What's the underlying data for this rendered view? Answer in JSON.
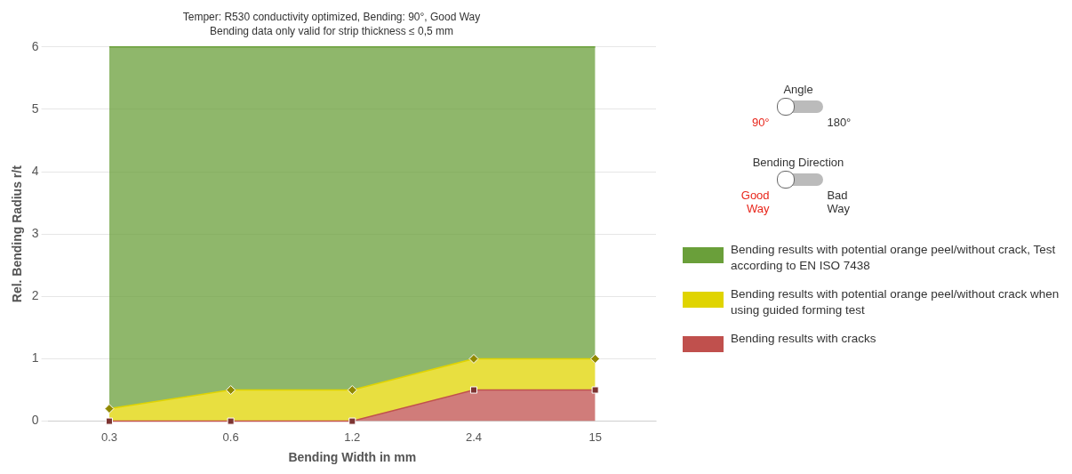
{
  "chart_data": {
    "type": "area",
    "title": "Temper: R530 conductivity optimized, Bending: 90°, Good Way",
    "subtitle": "Bending data only valid for strip thickness ≤ 0,5 mm",
    "xlabel": "Bending Width in mm",
    "ylabel": "Rel. Bending Radius r/t",
    "categories": [
      "0.3",
      "0.6",
      "1.2",
      "2.4",
      "15"
    ],
    "series": [
      {
        "name": "Bending results with potential orange peel/without crack, Test according to EN ISO 7438",
        "color": "#6a9f3a",
        "values": [
          6,
          6,
          6,
          6,
          6
        ],
        "marker": "none"
      },
      {
        "name": "Bending results with potential orange peel/without crack when using guided forming test",
        "color": "#e0d400",
        "values": [
          0.2,
          0.5,
          0.5,
          1,
          1
        ],
        "marker": "diamond"
      },
      {
        "name": "Bending results with cracks",
        "color": "#c0504d",
        "values": [
          0,
          0,
          0,
          0.5,
          0.5
        ],
        "marker": "square"
      }
    ],
    "ylim": [
      0,
      6
    ],
    "yticks": [
      0,
      1,
      2,
      3,
      4,
      5,
      6
    ],
    "grid": "y",
    "legend": "right",
    "annotations": [
      "Angle",
      "90°",
      "180°",
      "Bending Direction",
      "Good Way",
      "Bad Way"
    ]
  }
}
